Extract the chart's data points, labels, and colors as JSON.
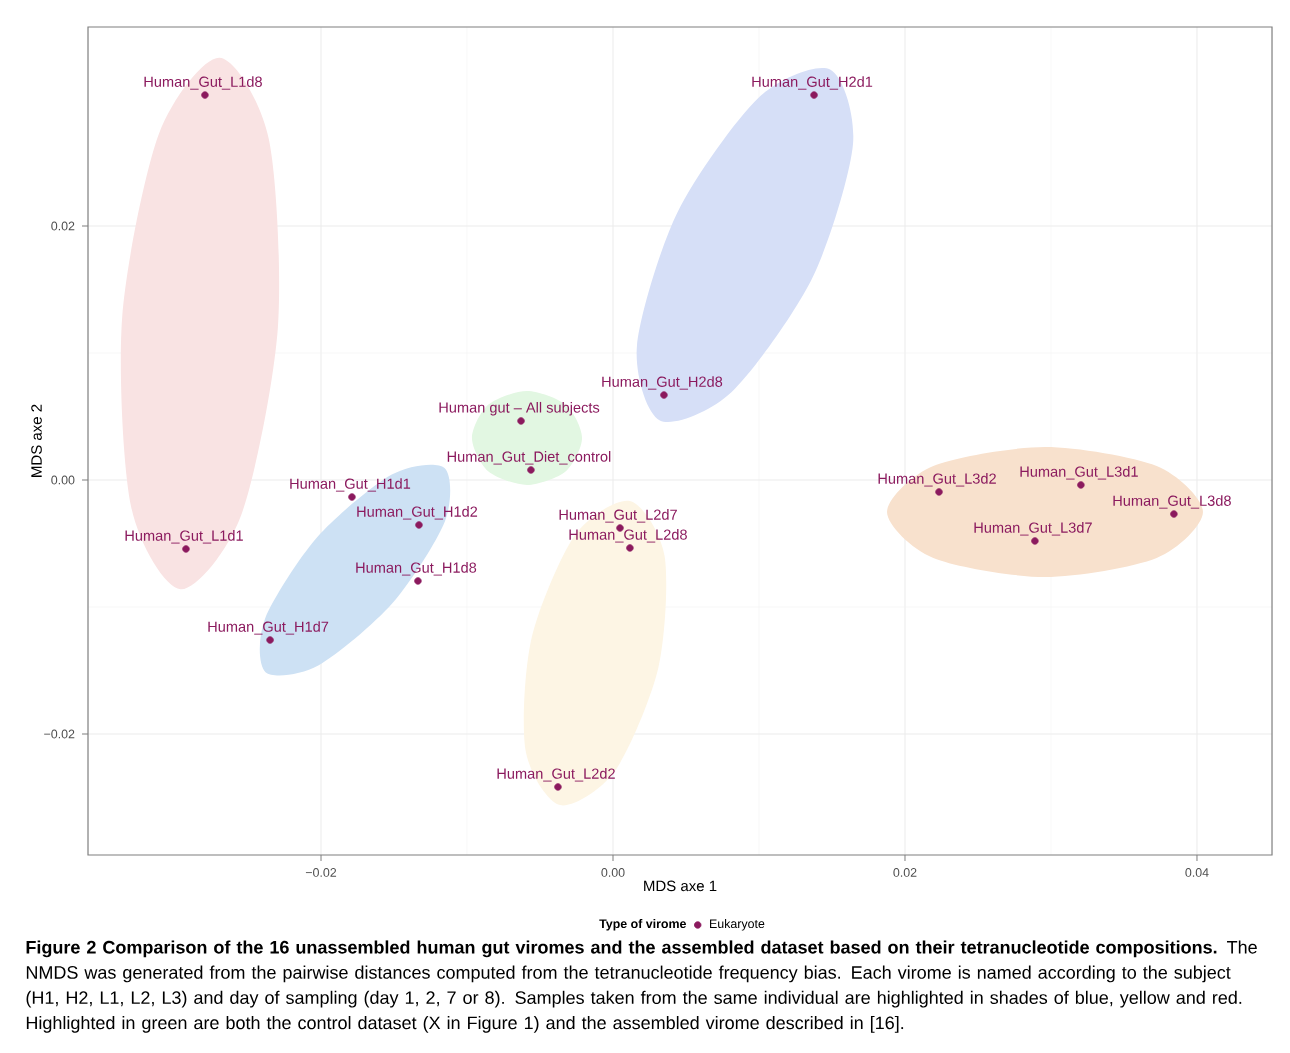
{
  "chart_data": {
    "type": "scatter",
    "xlabel": "MDS axe 1",
    "ylabel": "MDS axe 2",
    "legend_title": "Type of virome",
    "xlim": [
      -0.03596,
      0.04514
    ],
    "ylim": [
      -0.02953,
      0.03567
    ],
    "xticks": [
      {
        "value": -0.02,
        "label": "−0.02"
      },
      {
        "value": 0,
        "label": "0.00"
      },
      {
        "value": 0.02,
        "label": "0.02"
      },
      {
        "value": 0.04,
        "label": "0.04"
      }
    ],
    "yticks": [
      {
        "value": -0.02,
        "label": "−0.02"
      },
      {
        "value": 0,
        "label": "0.00"
      },
      {
        "value": 0.02,
        "label": "0.02"
      }
    ],
    "grid": true,
    "legend": "bottom",
    "marker": "circle",
    "series": [
      {
        "type": "area",
        "marker": "none",
        "color": "#f9e3e3",
        "x": [
          -0.02695,
          -0.02358,
          -0.02296,
          -0.02547,
          -0.02962,
          -0.033,
          -0.03362,
          -0.0311
        ],
        "values": [
          0.03325,
          0.02687,
          0.01191,
          -0.00277,
          -0.0086,
          -0.00214,
          0.01281,
          0.02726
        ]
      },
      {
        "type": "area",
        "marker": "none",
        "color": "#d6dff7",
        "x": [
          0.01487,
          0.01644,
          0.01366,
          0.00811,
          0.00321,
          0.00164,
          0.00442,
          0.00997
        ],
        "values": [
          0.03232,
          0.02645,
          0.01592,
          0.00691,
          0.00469,
          0.01056,
          0.02109,
          0.0301
        ]
      },
      {
        "type": "area",
        "marker": "none",
        "color": "#e2f7e2",
        "x": [
          -0.00212,
          -0.00323,
          -0.00589,
          -0.00855,
          -0.00966,
          -0.00855,
          -0.00589,
          -0.00323
        ],
        "values": [
          0.00331,
          0.00592,
          0.00701,
          0.00592,
          0.00331,
          0.00069,
          -0.00039,
          0.00069
        ]
      },
      {
        "type": "area",
        "marker": "none",
        "color": "#cde1f4",
        "x": [
          -0.01154,
          -0.01151,
          -0.0151,
          -0.02019,
          -0.0238,
          -0.02384,
          -0.02025,
          -0.01515
        ],
        "values": [
          0.00095,
          -0.00324,
          -0.00969,
          -0.01461,
          -0.01513,
          -0.01094,
          -0.00449,
          0.00043
        ]
      },
      {
        "type": "area",
        "marker": "none",
        "color": "#fdf5e4",
        "x": [
          0.00116,
          0.00353,
          0.00311,
          0.00014,
          -0.00362,
          -0.00599,
          -0.00558,
          -0.00261
        ],
        "values": [
          -0.00165,
          -0.00597,
          -0.01477,
          -0.0229,
          -0.0256,
          -0.02128,
          -0.01247,
          -0.00435
        ]
      },
      {
        "type": "area",
        "marker": "none",
        "color": "#f8e1cd",
        "x": [
          0.04041,
          0.03724,
          0.02959,
          0.02194,
          0.01877,
          0.02194,
          0.02959,
          0.03724
        ],
        "values": [
          -0.00252,
          0.0011,
          0.0026,
          0.0011,
          -0.00252,
          -0.00614,
          -0.00764,
          -0.00614
        ]
      },
      {
        "name": "Eukaryote",
        "color": "#8b1a5e",
        "x": [
          -0.02795,
          0.01377,
          0.00349,
          -0.0063,
          -0.00562,
          -0.01788,
          -0.01329,
          -0.02925,
          0.00048,
          0.00116,
          -0.01336,
          -0.02349,
          -0.00377,
          0.02233,
          0.03205,
          0.03842,
          0.0289
        ],
        "values": [
          0.03031,
          0.03031,
          0.00669,
          0.00465,
          0.00079,
          -0.00134,
          -0.00354,
          -0.00543,
          -0.00378,
          -0.00535,
          -0.00795,
          -0.0126,
          -0.02417,
          -0.00094,
          -0.00039,
          -0.00268,
          -0.0048
        ]
      }
    ],
    "annotations": [
      {
        "text": "Human_Gut_L1d8",
        "x": -0.02795,
        "y": 0.03031
      },
      {
        "text": "Human_Gut_H2d1",
        "x": 0.01377,
        "y": 0.03031
      },
      {
        "text": "Human_Gut_H2d8",
        "x": 0.00349,
        "y": 0.00669
      },
      {
        "text": "Human gut – All subjects",
        "x": -0.0063,
        "y": 0.00465
      },
      {
        "text": "Human_Gut_Diet_control",
        "x": -0.00562,
        "y": 0.00079
      },
      {
        "text": "Human_Gut_H1d1",
        "x": -0.01788,
        "y": -0.00134
      },
      {
        "text": "Human_Gut_H1d2",
        "x": -0.01329,
        "y": -0.00354
      },
      {
        "text": "Human_Gut_L1d1",
        "x": -0.02925,
        "y": -0.00543
      },
      {
        "text": "Human_Gut_L2d7",
        "x": 0.00048,
        "y": -0.00378
      },
      {
        "text": "Human_Gut_L2d8",
        "x": 0.00116,
        "y": -0.00535
      },
      {
        "text": "Human_Gut_H1d8",
        "x": -0.01336,
        "y": -0.00795
      },
      {
        "text": "Human_Gut_H1d7",
        "x": -0.02349,
        "y": -0.0126
      },
      {
        "text": "Human_Gut_L2d2",
        "x": -0.00377,
        "y": -0.02417
      },
      {
        "text": "Human_Gut_L3d2",
        "x": 0.02233,
        "y": -0.00094
      },
      {
        "text": "Human_Gut_L3d1",
        "x": 0.03205,
        "y": -0.00039
      },
      {
        "text": "Human_Gut_L3d8",
        "x": 0.03842,
        "y": -0.00268
      },
      {
        "text": "Human_Gut_L3d7",
        "x": 0.0289,
        "y": -0.0048
      },
      "**Figure 2 Comparison of the 16 unassembled human gut viromes and the assembled dataset based on their tetranucleotide compositions.** The NMDS was generated from the pairwise distances computed from the tetranucleotide frequency bias. Each virome is named according to the subject (H1, H2, L1, L2, L3) and day of sampling (day 1, 2, 7 or 8). Samples taken from the same individual are highlighted in shades of blue, yellow and red. Highlighted in green are both the control dataset (X in Figure 1) and the assembled virome described in [16]."
    ]
  }
}
